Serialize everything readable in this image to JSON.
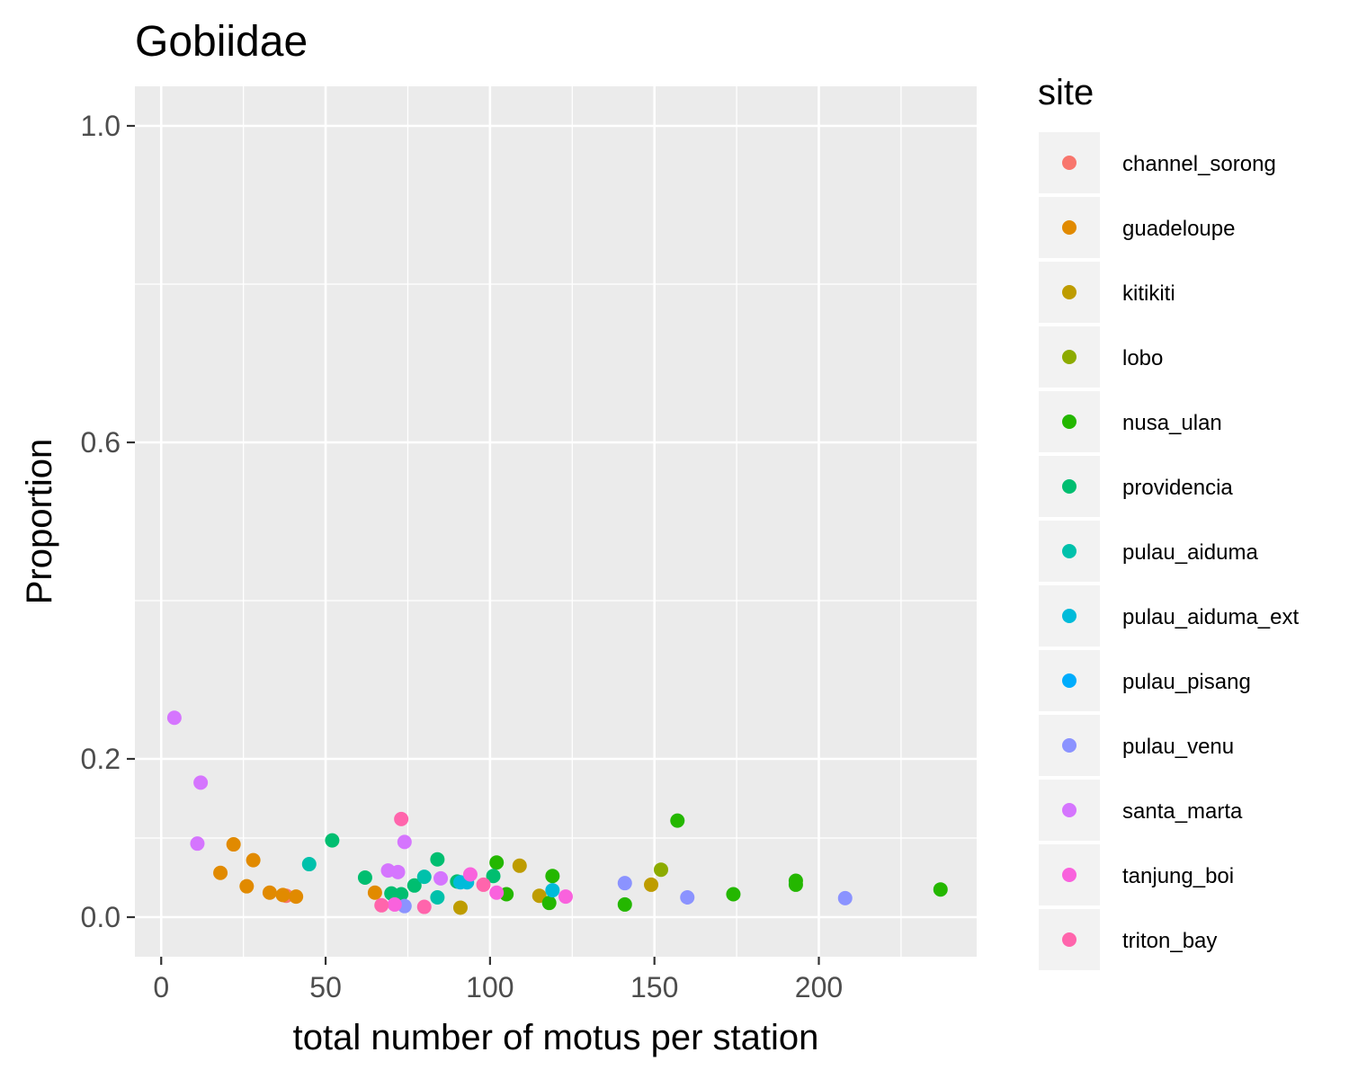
{
  "chart_data": {
    "type": "scatter",
    "title": "Gobiidae",
    "xlabel": "total number of motus per station",
    "ylabel": "Proportion",
    "xlim": [
      -8,
      248
    ],
    "ylim": [
      -0.05,
      1.05
    ],
    "x_ticks": [
      0,
      50,
      100,
      150,
      200
    ],
    "y_ticks": [
      0.0,
      0.2,
      0.6,
      1.0
    ],
    "y_tick_labels": [
      "0.0",
      "0.2",
      "0.6",
      "1.0"
    ],
    "grid": true,
    "legend": {
      "title": "site",
      "placement": "right"
    },
    "series": [
      {
        "name": "channel_sorong",
        "color": "#F8766D",
        "points": [
          [
            38,
            0.027
          ]
        ]
      },
      {
        "name": "guadeloupe",
        "color": "#E18A00",
        "points": [
          [
            18,
            0.056
          ],
          [
            22,
            0.092
          ],
          [
            26,
            0.039
          ],
          [
            28,
            0.072
          ],
          [
            33,
            0.031
          ],
          [
            37,
            0.028
          ],
          [
            41,
            0.026
          ],
          [
            65,
            0.031
          ]
        ]
      },
      {
        "name": "kitikiti",
        "color": "#BE9C00",
        "points": [
          [
            91,
            0.012
          ],
          [
            109,
            0.065
          ],
          [
            115,
            0.027
          ],
          [
            149,
            0.041
          ]
        ]
      },
      {
        "name": "lobo",
        "color": "#8CAB00",
        "points": [
          [
            152,
            0.06
          ]
        ]
      },
      {
        "name": "nusa_ulan",
        "color": "#24B700",
        "points": [
          [
            102,
            0.069
          ],
          [
            105,
            0.029
          ],
          [
            118,
            0.018
          ],
          [
            119,
            0.052
          ],
          [
            141,
            0.016
          ],
          [
            157,
            0.122
          ],
          [
            174,
            0.029
          ],
          [
            193,
            0.046
          ],
          [
            193,
            0.041
          ],
          [
            237,
            0.035
          ]
        ]
      },
      {
        "name": "providencia",
        "color": "#00BE70",
        "points": [
          [
            52,
            0.097
          ],
          [
            62,
            0.05
          ],
          [
            70,
            0.03
          ],
          [
            73,
            0.029
          ],
          [
            77,
            0.04
          ],
          [
            84,
            0.073
          ],
          [
            90,
            0.045
          ],
          [
            101,
            0.052
          ]
        ]
      },
      {
        "name": "pulau_aiduma",
        "color": "#00C1AB",
        "points": [
          [
            45,
            0.067
          ],
          [
            80,
            0.051
          ],
          [
            84,
            0.025
          ]
        ]
      },
      {
        "name": "pulau_aiduma_ext",
        "color": "#00BBDA",
        "points": [
          [
            91,
            0.044
          ],
          [
            93,
            0.044
          ],
          [
            119,
            0.034
          ]
        ]
      },
      {
        "name": "pulau_pisang",
        "color": "#00ACFC",
        "points": []
      },
      {
        "name": "pulau_venu",
        "color": "#8B93FF",
        "points": [
          [
            74,
            0.014
          ],
          [
            141,
            0.043
          ],
          [
            160,
            0.025
          ],
          [
            208,
            0.024
          ]
        ]
      },
      {
        "name": "santa_marta",
        "color": "#D575FE",
        "points": [
          [
            4,
            0.252
          ],
          [
            11,
            0.093
          ],
          [
            12,
            0.17
          ],
          [
            69,
            0.059
          ],
          [
            72,
            0.057
          ],
          [
            74,
            0.095
          ],
          [
            85,
            0.049
          ]
        ]
      },
      {
        "name": "tanjung_boi",
        "color": "#F962DD",
        "points": [
          [
            71,
            0.016
          ],
          [
            94,
            0.054
          ],
          [
            102,
            0.031
          ],
          [
            123,
            0.026
          ]
        ]
      },
      {
        "name": "triton_bay",
        "color": "#FF65AC",
        "points": [
          [
            67,
            0.015
          ],
          [
            73,
            0.124
          ],
          [
            80,
            0.013
          ],
          [
            98,
            0.041
          ]
        ]
      }
    ]
  }
}
